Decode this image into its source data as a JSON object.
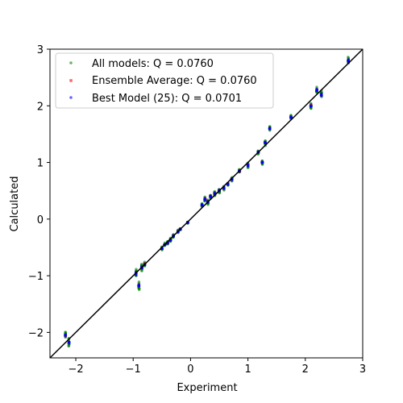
{
  "chart_data": {
    "type": "scatter",
    "title": "",
    "xlabel": "Experiment",
    "ylabel": "Calculated",
    "xlim": [
      -2.45,
      3.0
    ],
    "ylim": [
      -2.45,
      3.0
    ],
    "x_ticks": [
      -2,
      -1,
      0,
      1,
      2,
      3
    ],
    "y_ticks": [
      -2,
      -1,
      0,
      1,
      2,
      3
    ],
    "x_tick_labels": [
      "−2",
      "−1",
      "0",
      "1",
      "2",
      "3"
    ],
    "y_tick_labels": [
      "−2",
      "−1",
      "0",
      "1",
      "2",
      "3"
    ],
    "grid": false,
    "legend_position": "top-left",
    "reference_line": {
      "slope": 1,
      "intercept": 0,
      "color": "#000000"
    },
    "clusters": [
      {
        "x": -2.18,
        "y": -2.05,
        "spread": 0.25
      },
      {
        "x": -2.12,
        "y": -2.18,
        "spread": 0.22
      },
      {
        "x": -0.95,
        "y": -0.95,
        "spread": 0.25
      },
      {
        "x": -0.9,
        "y": -1.18,
        "spread": 0.2
      },
      {
        "x": -0.85,
        "y": -0.85,
        "spread": 0.18
      },
      {
        "x": -0.8,
        "y": -0.8,
        "spread": 0.15
      },
      {
        "x": -0.5,
        "y": -0.52,
        "spread": 0.08
      },
      {
        "x": -0.45,
        "y": -0.45,
        "spread": 0.1
      },
      {
        "x": -0.4,
        "y": -0.42,
        "spread": 0.08
      },
      {
        "x": -0.35,
        "y": -0.37,
        "spread": 0.1
      },
      {
        "x": -0.3,
        "y": -0.3,
        "spread": 0.1
      },
      {
        "x": -0.22,
        "y": -0.22,
        "spread": 0.08
      },
      {
        "x": -0.18,
        "y": -0.18,
        "spread": 0.06
      },
      {
        "x": -0.05,
        "y": -0.06,
        "spread": 0.05
      },
      {
        "x": 0.2,
        "y": 0.25,
        "spread": 0.1
      },
      {
        "x": 0.25,
        "y": 0.35,
        "spread": 0.12
      },
      {
        "x": 0.3,
        "y": 0.3,
        "spread": 0.12
      },
      {
        "x": 0.35,
        "y": 0.4,
        "spread": 0.12
      },
      {
        "x": 0.42,
        "y": 0.45,
        "spread": 0.12
      },
      {
        "x": 0.5,
        "y": 0.5,
        "spread": 0.12
      },
      {
        "x": 0.58,
        "y": 0.55,
        "spread": 0.12
      },
      {
        "x": 0.65,
        "y": 0.62,
        "spread": 0.1
      },
      {
        "x": 0.72,
        "y": 0.7,
        "spread": 0.1
      },
      {
        "x": 0.85,
        "y": 0.85,
        "spread": 0.1
      },
      {
        "x": 1.0,
        "y": 0.95,
        "spread": 0.12
      },
      {
        "x": 1.18,
        "y": 1.18,
        "spread": 0.12
      },
      {
        "x": 1.25,
        "y": 1.0,
        "spread": 0.1
      },
      {
        "x": 1.3,
        "y": 1.35,
        "spread": 0.12
      },
      {
        "x": 1.38,
        "y": 1.6,
        "spread": 0.15
      },
      {
        "x": 1.75,
        "y": 1.8,
        "spread": 0.1
      },
      {
        "x": 2.1,
        "y": 2.0,
        "spread": 0.15
      },
      {
        "x": 2.2,
        "y": 2.28,
        "spread": 0.18
      },
      {
        "x": 2.28,
        "y": 2.2,
        "spread": 0.25
      },
      {
        "x": 2.75,
        "y": 2.8,
        "spread": 0.3
      }
    ],
    "series": [
      {
        "name": "All models: Q = 0.0760",
        "color": "#008000",
        "marker": "point",
        "points_per_cluster": 18
      },
      {
        "name": "Ensemble Average: Q = 0.0760",
        "color": "#ff0000",
        "marker": "square",
        "points_per_cluster": 2
      },
      {
        "name": "Best Model (25): Q = 0.0701",
        "color": "#0000ff",
        "marker": "point",
        "points_per_cluster": 5
      }
    ]
  }
}
